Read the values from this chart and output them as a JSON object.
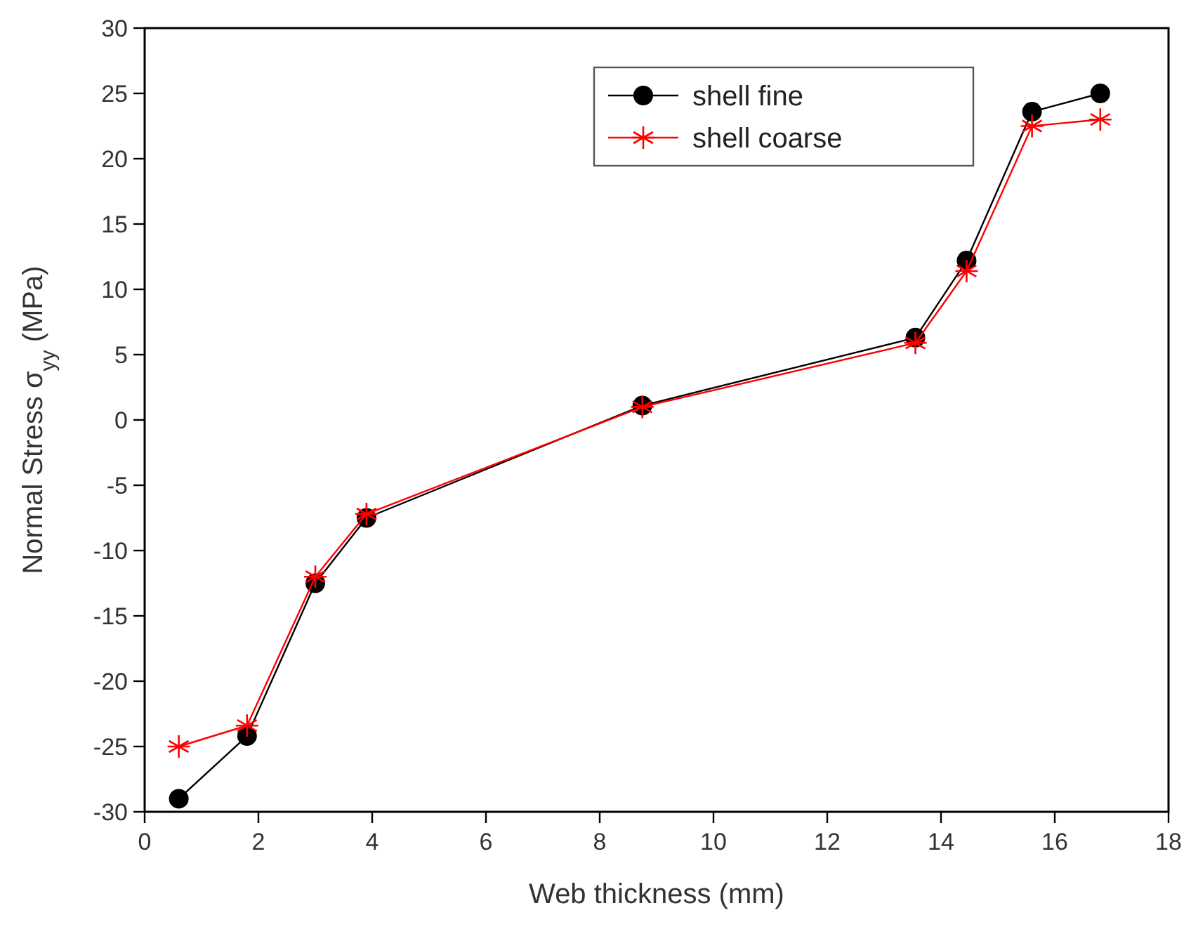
{
  "chart_data": {
    "type": "line",
    "xlabel": "Web thickness (mm)",
    "ylabel": "Normal Stress σ$_{yy}$ (MPa)",
    "x": [
      0.6,
      1.8,
      3.0,
      3.9,
      8.75,
      13.55,
      14.45,
      15.6,
      16.8
    ],
    "series": [
      {
        "name": "shell fine",
        "color": "#000000",
        "marker": "circle",
        "values": [
          -29,
          -24.2,
          -12.5,
          -7.5,
          1.1,
          6.3,
          12.2,
          23.6,
          25.0
        ]
      },
      {
        "name": "shell coarse",
        "color": "#ff0000",
        "marker": "cross",
        "values": [
          -25,
          -23.4,
          -12,
          -7.2,
          1.0,
          5.9,
          11.4,
          22.5,
          23.0
        ]
      }
    ],
    "xlim": [
      0,
      18
    ],
    "xticks": [
      0,
      2,
      4,
      6,
      8,
      10,
      12,
      14,
      16,
      18
    ],
    "ylim": [
      -30,
      30
    ],
    "yticks": [
      -30,
      -25,
      -20,
      -15,
      -10,
      -5,
      0,
      5,
      10,
      15,
      20,
      25,
      30
    ],
    "grid": false,
    "legend": "top right"
  }
}
